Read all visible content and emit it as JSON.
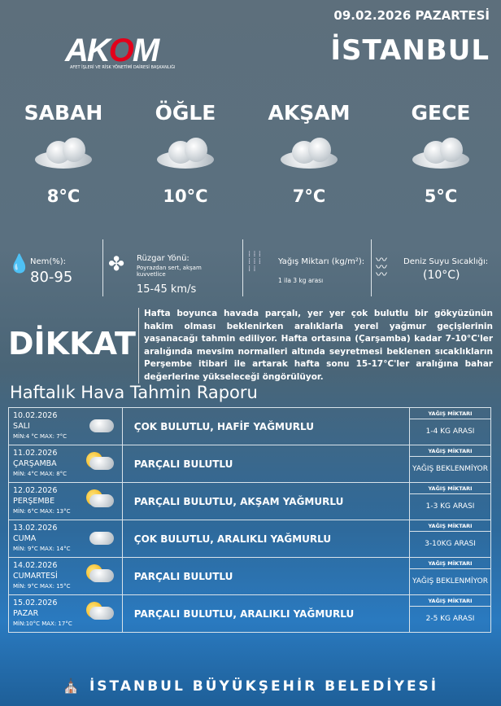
{
  "header": {
    "date": "09.02.2026 PAZARTESİ",
    "city": "İSTANBUL",
    "logo": "AKOM",
    "logo_subtitle": "AFET İŞLERİ VE RİSK YÖNETİMİ DAİRESİ BAŞKANLIĞI"
  },
  "periods": [
    {
      "name": "SABAH",
      "temp": "8°C",
      "icon": "cloud-icon"
    },
    {
      "name": "ÖĞLE",
      "temp": "10°C",
      "icon": "cloud-icon"
    },
    {
      "name": "AKŞAM",
      "temp": "7°C",
      "icon": "rain-cloud-icon"
    },
    {
      "name": "GECE",
      "temp": "5°C",
      "icon": "rain-cloud-icon"
    }
  ],
  "info": {
    "humidity_label": "Nem(%):",
    "humidity_value": "80-95",
    "wind_label": "Rüzgar Yönü:",
    "wind_desc": "Poyrazdan sert, akşam kuvvetlice",
    "wind_value": "15-45 km/s",
    "rain_label": "Yağış Miktarı (kg/m²):",
    "rain_value": "1 ila 3 kg arası",
    "sea_label": "Deniz Suyu Sıcaklığı:",
    "sea_value": "(10°C)"
  },
  "warning": {
    "title": "DİKKAT",
    "text": "Hafta boyunca havada parçalı, yer yer çok bulutlu bir gökyüzünün hakim olması beklenirken aralıklarla yerel yağmur geçişlerinin yaşanacağı tahmin ediliyor. Hafta ortasına (Çarşamba) kadar 7-10°C'ler aralığında mevsim normalleri altında seyretmesi beklenen sıcaklıkların Perşembe itibari ile artarak hafta sonu 15-17°C'ler aralığına bahar değerlerine yükseleceği öngörülüyor."
  },
  "weekly": {
    "title": "Haftalık Hava Tahmin Raporu",
    "rain_header": "YAĞIŞ MİKTARI",
    "rows": [
      {
        "date": "10.02.2026",
        "day": "SALI",
        "minmax": "MİN:4 °C MAX: 7°C",
        "desc": "ÇOK BULUTLU, HAFİF YAĞMURLU",
        "rain": "1-4 KG ARASI",
        "icon": "rain-cloud-icon"
      },
      {
        "date": "11.02.2026",
        "day": "ÇARŞAMBA",
        "minmax": "MİN: 4°C MAX: 8°C",
        "desc": "PARÇALI BULUTLU",
        "rain": "YAĞIŞ BEKLENMİYOR",
        "icon": "partly-cloudy-icon"
      },
      {
        "date": "12.02.2026",
        "day": "PERŞEMBE",
        "minmax": "MİN: 6°C MAX: 13°C",
        "desc": "PARÇALI BULUTLU, AKŞAM YAĞMURLU",
        "rain": "1-3 KG ARASI",
        "icon": "partly-cloudy-icon"
      },
      {
        "date": "13.02.2026",
        "day": "CUMA",
        "minmax": "MİN: 9°C MAX: 14°C",
        "desc": "ÇOK BULUTLU, ARALIKLI YAĞMURLU",
        "rain": "3-10KG ARASI",
        "icon": "rain-cloud-icon"
      },
      {
        "date": "14.02.2026",
        "day": "CUMARTESİ",
        "minmax": "MİN: 9°C MAX: 15°C",
        "desc": "PARÇALI BULUTLU",
        "rain": "YAĞIŞ BEKLENMİYOR",
        "icon": "partly-cloudy-icon"
      },
      {
        "date": "15.02.2026",
        "day": "PAZAR",
        "minmax": "MİN:10°C MAX: 17°C",
        "desc": "PARÇALI BULUTLU, ARALIKLI YAĞMURLU",
        "rain": "2-5 KG ARASI",
        "icon": "partly-cloudy-rain-icon"
      }
    ]
  },
  "footer": {
    "text": "İSTANBUL BÜYÜKŞEHİR BELEDİYESİ"
  }
}
